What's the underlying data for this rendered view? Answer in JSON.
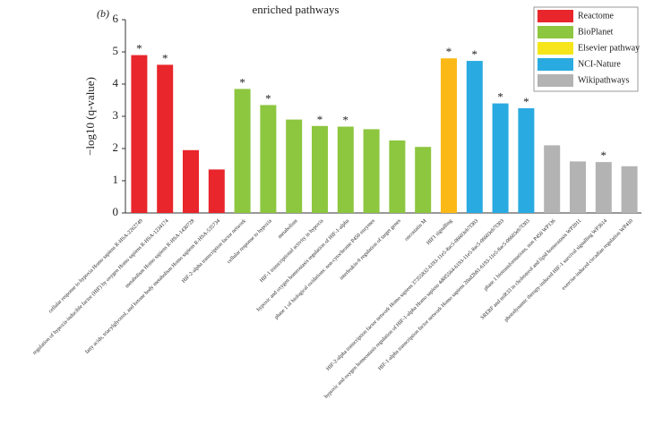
{
  "chart_data": {
    "type": "bar",
    "title": "enriched pathways",
    "panel": "(b)",
    "ylabel": "−log10 (q-value)",
    "categories": [
      "cellular response to hypoxia Homo sapiens R-HSA-2262749",
      "regulation of hypoxia-inducible factor (HIF) by oxygen Homo sapiens R-HSA-1234174",
      "metabolism Homo sapiens R-HSA-1430728",
      "fatty acids, triacylglycerol, and ketone body metabolism Homo sapiens R-HSA-535734",
      "HIF-2-alpha transcription factor network",
      "cellular response to hypoxia",
      "metabolism",
      "HIF-1 transcriptional activity in hypoxia",
      "hypoxic and oxygen homeostasis regulation of HIF-1-alpha",
      "phase 1 of biological oxidations: non-cytochrome P450 enzymes",
      "interleukin-9 regulation of target genes",
      "oncostatin M",
      "HIF1 signalling",
      "HIF-2-alpha transcription factor network Homo sapiens 37355832-6193-11e5-8ac5-06603eb7f303",
      "hypoxic and oxygen homeostasis regulation of HIF-1-alpha Homo sapiens 4d0f5564-6193-11e5-8ac5-06603eb7f303",
      "HIF-1-alpha transcription factor network Homo sapiens 20ad2b81-6193-11e5-8ac5-06603eb7f303",
      "phase 1 biotransformations, non P450 WP136",
      "SREBF and miR33 in cholesterol and lipid homeostasis WP2011",
      "photodynamic therapy-induced HIF-1 survival signalling WP3614",
      "exercise-induced circadian regulation WP410"
    ],
    "series": [
      {
        "name": "Reactome",
        "color": "#e8262b",
        "values": [
          4.9,
          4.6,
          1.95,
          1.35,
          null,
          null,
          null,
          null,
          null,
          null,
          null,
          null,
          null,
          null,
          null,
          null,
          null,
          null,
          null,
          null
        ]
      },
      {
        "name": "BioPlanet",
        "color": "#8dc63f",
        "values": [
          null,
          null,
          null,
          null,
          3.85,
          3.35,
          2.9,
          2.7,
          2.68,
          2.6,
          2.25,
          2.05,
          null,
          null,
          null,
          null,
          null,
          null,
          null,
          null
        ]
      },
      {
        "name": "Elsevier pathway",
        "color": "#f5e51a",
        "values": [
          null,
          null,
          null,
          null,
          null,
          null,
          null,
          null,
          null,
          null,
          null,
          null,
          null,
          null,
          null,
          null,
          null,
          null,
          null,
          null
        ]
      },
      {
        "name": "NCI-Nature",
        "color": "#29aae1",
        "values": [
          null,
          null,
          null,
          null,
          null,
          null,
          null,
          null,
          null,
          null,
          null,
          null,
          null,
          4.72,
          3.4,
          3.25,
          null,
          null,
          null,
          null
        ]
      },
      {
        "name": "Wikipathways",
        "color": "#b3b3b3",
        "values": [
          null,
          null,
          null,
          null,
          null,
          null,
          null,
          null,
          null,
          null,
          null,
          null,
          null,
          null,
          null,
          null,
          2.1,
          1.6,
          1.58,
          1.45
        ]
      },
      {
        "name": null,
        "color": "#fbb917",
        "values": [
          null,
          null,
          null,
          null,
          null,
          null,
          null,
          null,
          null,
          null,
          null,
          null,
          4.8,
          null,
          null,
          null,
          null,
          null,
          null,
          null
        ]
      }
    ],
    "significance": [
      "*",
      "*",
      null,
      null,
      "*",
      "*",
      null,
      "*",
      "*",
      null,
      null,
      null,
      "*",
      "*",
      "*",
      "*",
      null,
      null,
      "*",
      null
    ],
    "ylim": [
      0,
      6
    ],
    "yticks": [
      0,
      1,
      2,
      3,
      4,
      5,
      6
    ]
  }
}
